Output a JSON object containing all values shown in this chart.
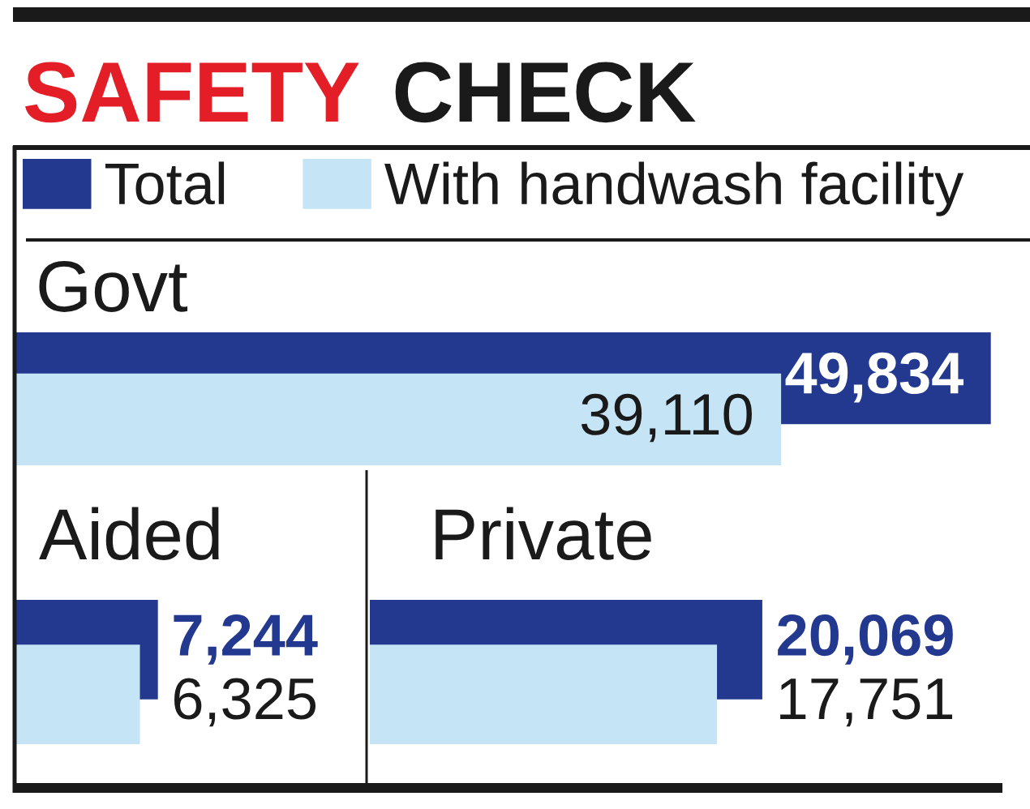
{
  "chart_data": [
    {
      "type": "other",
      "title": "SAFETY CHECK"
    },
    {
      "type": "bar",
      "orientation": "horizontal",
      "title": "Govt",
      "categories": [
        null
      ],
      "series": [
        {
          "name": "Total",
          "color": "#22398f",
          "values": [
            49834
          ],
          "value_labels": [
            "49,834"
          ]
        },
        {
          "name": "With handwash facility",
          "color": "#c5e5f6",
          "values": [
            39110
          ],
          "value_labels": [
            "39,110"
          ]
        }
      ],
      "legend": "top",
      "tick_labels": false
    },
    {
      "type": "bar",
      "orientation": "horizontal",
      "title": "Aided",
      "categories": [
        null
      ],
      "series": [
        {
          "color": "#22398f",
          "values": [
            7244
          ],
          "value_labels": [
            "7,244"
          ]
        },
        {
          "color": "#c5e5f6",
          "values": [
            6325
          ],
          "value_labels": [
            "6,325"
          ]
        }
      ],
      "tick_labels": false
    },
    {
      "type": "bar",
      "orientation": "horizontal",
      "title": "Private",
      "categories": [
        null
      ],
      "series": [
        {
          "color": "#22398f",
          "values": [
            20069
          ],
          "value_labels": [
            "20,069"
          ]
        },
        {
          "color": "#c5e5f6",
          "values": [
            17751
          ],
          "value_labels": [
            "17,751"
          ]
        }
      ],
      "tick_labels": false
    }
  ]
}
